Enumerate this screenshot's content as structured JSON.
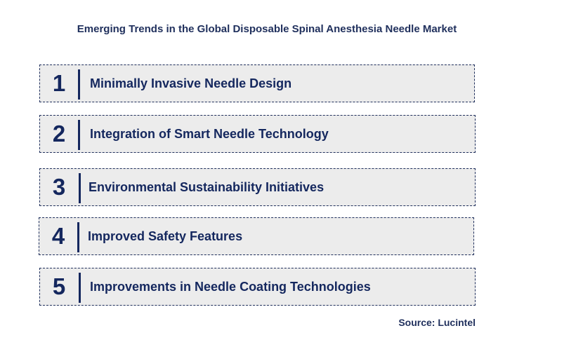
{
  "title": "Emerging Trends in the Global Disposable Spinal Anesthesia Needle Market",
  "trends": [
    {
      "number": "1",
      "label": "Minimally Invasive Needle Design"
    },
    {
      "number": "2",
      "label": "Integration of Smart Needle Technology"
    },
    {
      "number": "3",
      "label": "Environmental Sustainability Initiatives"
    },
    {
      "number": "4",
      "label": "Improved Safety Features"
    },
    {
      "number": "5",
      "label": "Improvements in Needle Coating Technologies"
    }
  ],
  "source": "Source: Lucintel",
  "colors": {
    "text": "#14275e",
    "box_fill": "#ececec",
    "border": "#1f2f5c"
  }
}
